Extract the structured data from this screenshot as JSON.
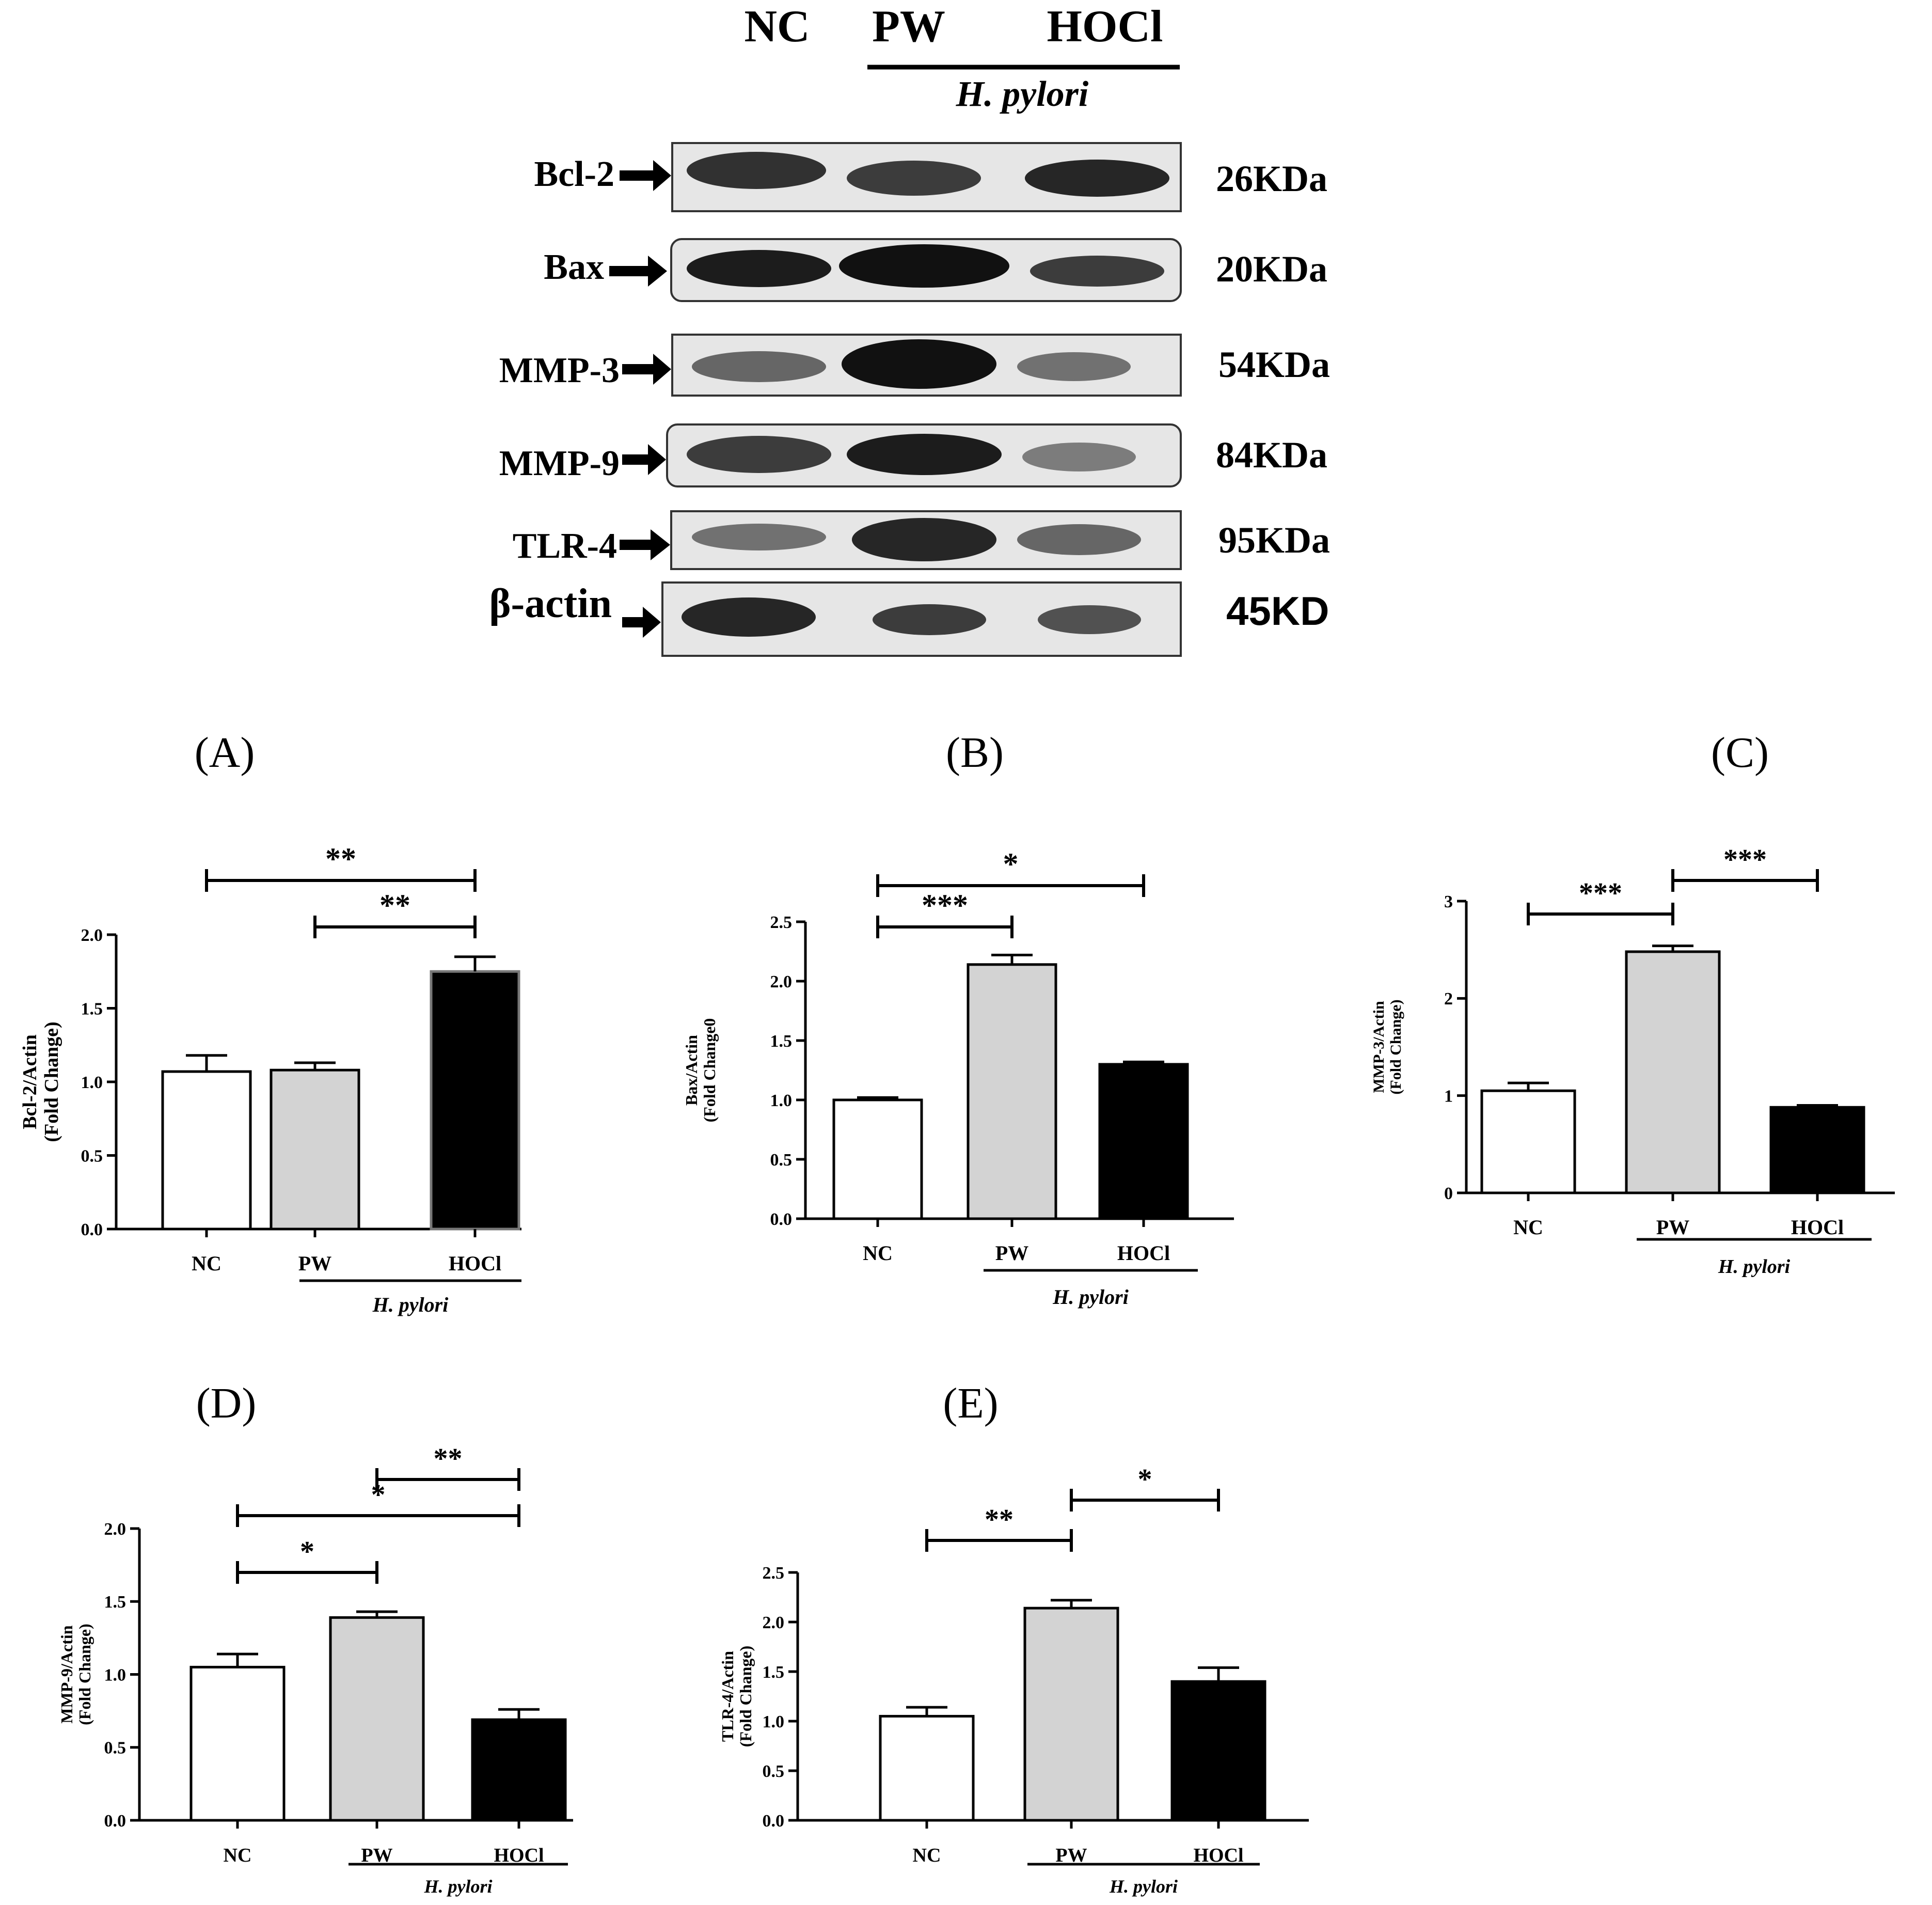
{
  "blot": {
    "lanes": [
      "NC",
      "PW",
      "HOCl"
    ],
    "group_label": "H. pylori",
    "rows": [
      {
        "protein": "Bcl-2",
        "size": "26KDa",
        "intensity": [
          0.85,
          0.8,
          0.9
        ]
      },
      {
        "protein": "Bax",
        "size": "20KDa",
        "intensity": [
          0.95,
          1.0,
          0.75
        ]
      },
      {
        "protein": "MMP-3",
        "size": "54KDa",
        "intensity": [
          0.6,
          1.0,
          0.45
        ]
      },
      {
        "protein": "MMP-9",
        "size": "84KDa",
        "intensity": [
          0.8,
          0.95,
          0.5
        ]
      },
      {
        "protein": "TLR-4",
        "size": "95KDa",
        "intensity": [
          0.55,
          0.9,
          0.6
        ]
      },
      {
        "protein": "β-actin",
        "size": "45KD",
        "intensity": [
          0.9,
          0.8,
          0.7
        ]
      }
    ]
  },
  "chart_data": [
    {
      "panel": "(A)",
      "type": "bar",
      "categories": [
        "NC",
        "PW",
        "HOCl"
      ],
      "values": [
        1.07,
        1.08,
        1.75
      ],
      "errors": [
        0.11,
        0.05,
        0.1
      ],
      "bar_colors": [
        "#ffffff",
        "#d3d3d3",
        "#000000"
      ],
      "ylabel": [
        "Bcl-2/Actin",
        "(Fold Change)"
      ],
      "ylim": [
        0,
        2.0
      ],
      "yticks": [
        "0.0",
        "0.5",
        "1.0",
        "1.5",
        "2.0"
      ],
      "group_label": "H. pylori",
      "comparisons": [
        {
          "from": 0,
          "to": 2,
          "label": "**"
        },
        {
          "from": 1,
          "to": 2,
          "label": "**"
        }
      ]
    },
    {
      "panel": "(B)",
      "type": "bar",
      "categories": [
        "NC",
        "PW",
        "HOCl"
      ],
      "values": [
        1.0,
        2.14,
        1.3
      ],
      "errors": [
        0.02,
        0.08,
        0.02
      ],
      "bar_colors": [
        "#ffffff",
        "#d3d3d3",
        "#000000"
      ],
      "ylabel": [
        "Bax/Actin",
        "(Fold Change0"
      ],
      "ylim": [
        0,
        2.5
      ],
      "yticks": [
        "0.0",
        "0.5",
        "1.0",
        "1.5",
        "2.0",
        "2.5"
      ],
      "group_label": "H. pylori",
      "comparisons": [
        {
          "from": 0,
          "to": 2,
          "label": "*"
        },
        {
          "from": 0,
          "to": 1,
          "label": "***"
        }
      ]
    },
    {
      "panel": "(C)",
      "type": "bar",
      "categories": [
        "NC",
        "PW",
        "HOCl"
      ],
      "values": [
        1.05,
        2.48,
        0.88
      ],
      "errors": [
        0.08,
        0.06,
        0.02
      ],
      "bar_colors": [
        "#ffffff",
        "#d3d3d3",
        "#000000"
      ],
      "ylabel": [
        "MMP-3/Actin",
        "(Fold Change)"
      ],
      "ylim": [
        0,
        3
      ],
      "yticks": [
        "0",
        "1",
        "2",
        "3"
      ],
      "group_label": "H. pylori",
      "comparisons": [
        {
          "from": 0,
          "to": 1,
          "label": "***"
        },
        {
          "from": 1,
          "to": 2,
          "label": "***"
        }
      ]
    },
    {
      "panel": "(D)",
      "type": "bar",
      "categories": [
        "NC",
        "PW",
        "HOCl"
      ],
      "values": [
        1.05,
        1.39,
        0.69
      ],
      "errors": [
        0.09,
        0.04,
        0.07
      ],
      "bar_colors": [
        "#ffffff",
        "#d3d3d3",
        "#000000"
      ],
      "ylabel": [
        "MMP-9/Actin",
        "(Fold Change)"
      ],
      "ylim": [
        0,
        2.0
      ],
      "yticks": [
        "0.0",
        "0.5",
        "1.0",
        "1.5",
        "2.0"
      ],
      "group_label": "H. pylori",
      "comparisons": [
        {
          "from": 1,
          "to": 2,
          "label": "**"
        },
        {
          "from": 0,
          "to": 2,
          "label": "*"
        },
        {
          "from": 0,
          "to": 1,
          "label": "*"
        }
      ]
    },
    {
      "panel": "(E)",
      "type": "bar",
      "categories": [
        "NC",
        "PW",
        "HOCl"
      ],
      "values": [
        1.05,
        2.14,
        1.4
      ],
      "errors": [
        0.09,
        0.08,
        0.14
      ],
      "bar_colors": [
        "#ffffff",
        "#d3d3d3",
        "#000000"
      ],
      "ylabel": [
        "TLR-4/Actin",
        "(Fold Change)"
      ],
      "ylim": [
        0,
        2.5
      ],
      "yticks": [
        "0.0",
        "0.5",
        "1.0",
        "1.5",
        "2.0",
        "2.5"
      ],
      "group_label": "H. pylori",
      "comparisons": [
        {
          "from": 0,
          "to": 1,
          "label": "**"
        },
        {
          "from": 1,
          "to": 2,
          "label": "*"
        }
      ]
    }
  ]
}
